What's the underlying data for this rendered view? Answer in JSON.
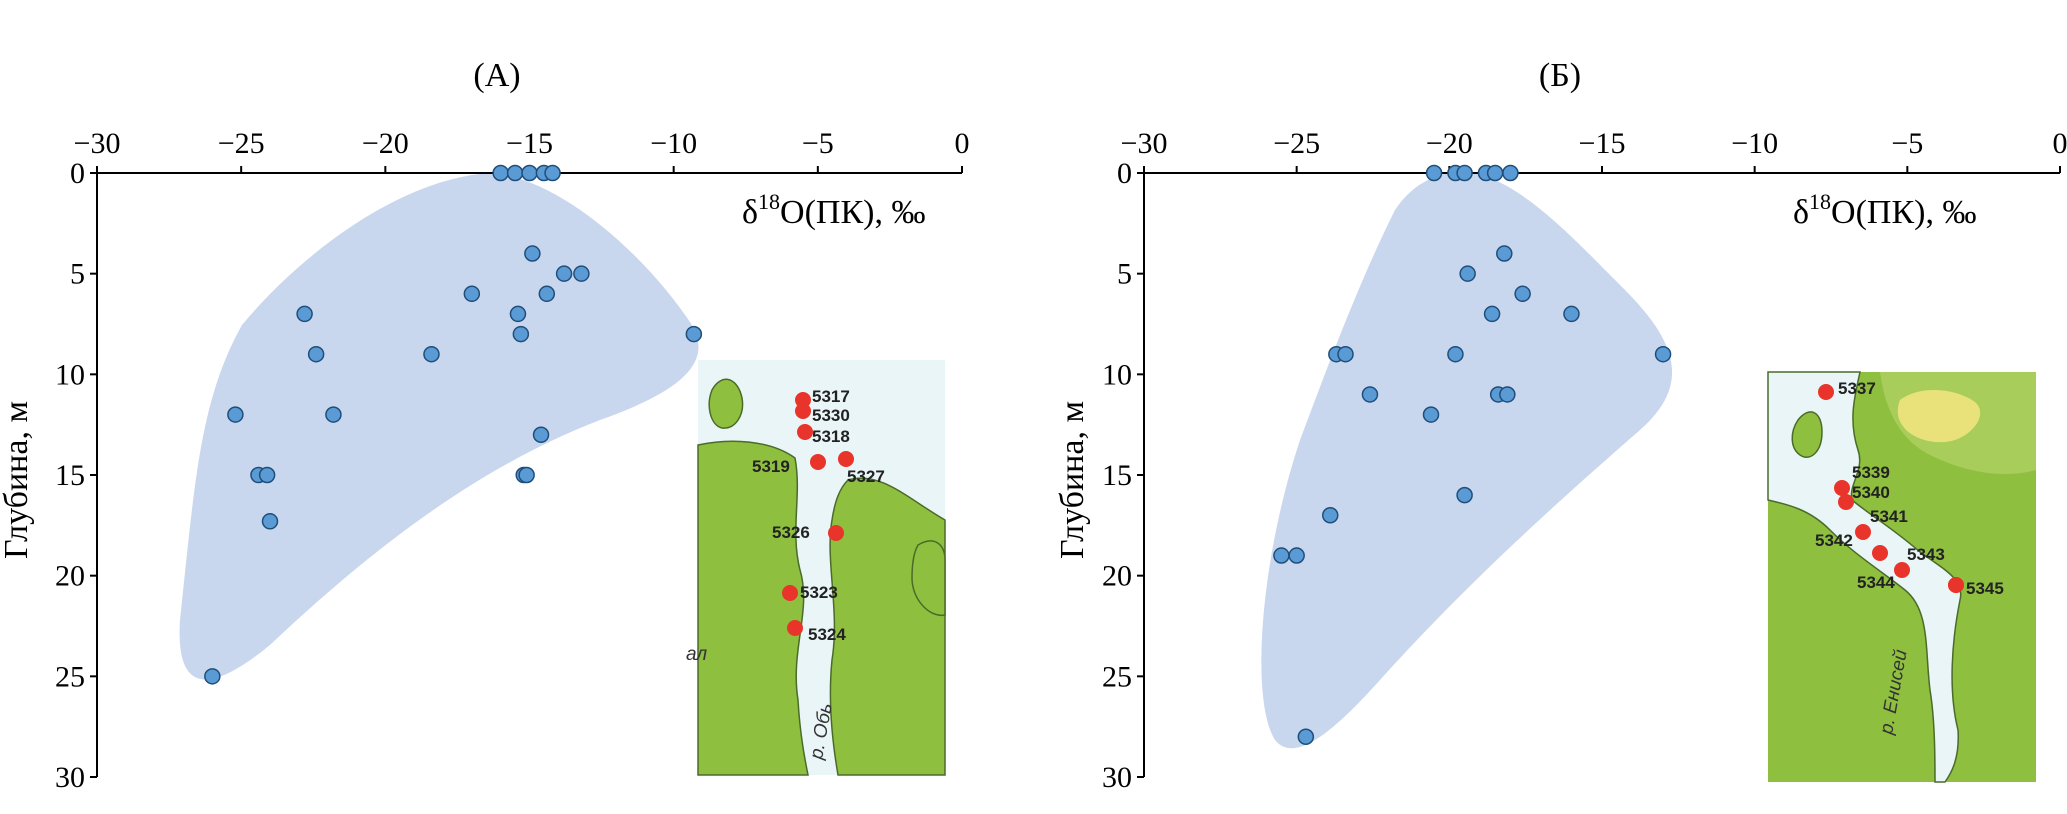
{
  "chart_data": [
    {
      "type": "scatter",
      "title": "(А)",
      "xlabel_base": "δ",
      "xlabel_sup": "18",
      "xlabel_rest": "O(ПК), ‰",
      "ylabel": "Глубина, м",
      "xlim": [
        -30,
        0
      ],
      "ylim": [
        0,
        30
      ],
      "y_inverted": true,
      "x_axis_position": "top",
      "x_ticks": [
        "−30",
        "−25",
        "−20",
        "−15",
        "−10",
        "−5",
        "0"
      ],
      "y_ticks": [
        "0",
        "5",
        "10",
        "15",
        "20",
        "25",
        "30"
      ],
      "grid": false,
      "legend": "none",
      "point_color": "#5b9bd5",
      "region_color": "#c9d7ee",
      "points": [
        {
          "x": -16.0,
          "y": 0
        },
        {
          "x": -15.5,
          "y": 0
        },
        {
          "x": -15.0,
          "y": 0
        },
        {
          "x": -14.5,
          "y": 0
        },
        {
          "x": -14.2,
          "y": 0
        },
        {
          "x": -14.9,
          "y": 4
        },
        {
          "x": -13.8,
          "y": 5
        },
        {
          "x": -13.2,
          "y": 5
        },
        {
          "x": -14.4,
          "y": 6
        },
        {
          "x": -17.0,
          "y": 6
        },
        {
          "x": -15.4,
          "y": 7
        },
        {
          "x": -22.8,
          "y": 7
        },
        {
          "x": -9.3,
          "y": 8
        },
        {
          "x": -15.3,
          "y": 8
        },
        {
          "x": -22.4,
          "y": 9
        },
        {
          "x": -18.4,
          "y": 9
        },
        {
          "x": -25.2,
          "y": 12
        },
        {
          "x": -21.8,
          "y": 12
        },
        {
          "x": -14.6,
          "y": 13
        },
        {
          "x": -24.4,
          "y": 15
        },
        {
          "x": -24.1,
          "y": 15
        },
        {
          "x": -15.2,
          "y": 15
        },
        {
          "x": -15.1,
          "y": 15
        },
        {
          "x": -24.0,
          "y": 17.3
        },
        {
          "x": -26.0,
          "y": 25
        }
      ],
      "inset_map": {
        "stations": [
          "5317",
          "5330",
          "5318",
          "5319",
          "5327",
          "5326",
          "5323",
          "5324"
        ],
        "labels": [
          "ал",
          "р. Обь"
        ],
        "station_color": "#e8342a",
        "land_color": "#8fbf3f",
        "water_color": "#eaf5f8"
      }
    },
    {
      "type": "scatter",
      "title": "(Б)",
      "xlabel_base": "δ",
      "xlabel_sup": "18",
      "xlabel_rest": "O(ПК), ‰",
      "ylabel": "Глубина, м",
      "xlim": [
        -30,
        0
      ],
      "ylim": [
        0,
        30
      ],
      "y_inverted": true,
      "x_axis_position": "top",
      "x_ticks": [
        "−30",
        "−25",
        "−20",
        "−15",
        "−10",
        "−5",
        "0"
      ],
      "y_ticks": [
        "0",
        "5",
        "10",
        "15",
        "20",
        "25",
        "30"
      ],
      "grid": false,
      "legend": "none",
      "point_color": "#5b9bd5",
      "region_color": "#c9d7ee",
      "points": [
        {
          "x": -20.5,
          "y": 0
        },
        {
          "x": -19.8,
          "y": 0
        },
        {
          "x": -19.5,
          "y": 0
        },
        {
          "x": -18.8,
          "y": 0
        },
        {
          "x": -18.5,
          "y": 0
        },
        {
          "x": -18.0,
          "y": 0
        },
        {
          "x": -18.2,
          "y": 4
        },
        {
          "x": -19.4,
          "y": 5
        },
        {
          "x": -17.6,
          "y": 6
        },
        {
          "x": -18.6,
          "y": 7
        },
        {
          "x": -16.0,
          "y": 7
        },
        {
          "x": -23.7,
          "y": 9
        },
        {
          "x": -23.4,
          "y": 9
        },
        {
          "x": -19.8,
          "y": 9
        },
        {
          "x": -13.0,
          "y": 9
        },
        {
          "x": -22.6,
          "y": 11
        },
        {
          "x": -18.4,
          "y": 11
        },
        {
          "x": -18.1,
          "y": 11
        },
        {
          "x": -20.6,
          "y": 12
        },
        {
          "x": -19.5,
          "y": 16
        },
        {
          "x": -23.9,
          "y": 17
        },
        {
          "x": -25.5,
          "y": 19
        },
        {
          "x": -25.0,
          "y": 19
        },
        {
          "x": -24.7,
          "y": 28
        }
      ],
      "inset_map": {
        "stations": [
          "5337",
          "5339",
          "5340",
          "5341",
          "5342",
          "5343",
          "5344",
          "5345"
        ],
        "labels": [
          "р. Енисей"
        ],
        "station_color": "#e8342a",
        "land_color": "#8fbf3f",
        "water_color": "#eaf5f8"
      }
    }
  ]
}
